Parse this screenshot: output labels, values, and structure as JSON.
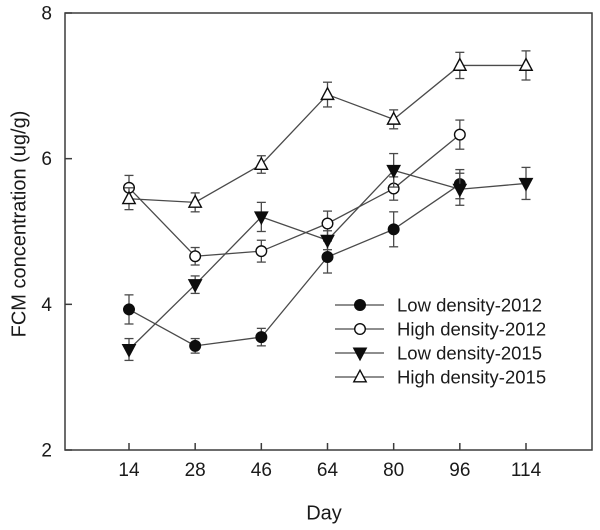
{
  "figure": {
    "background": "#ffffff",
    "y_axis_title": "FCM concentration (ug/g)",
    "x_axis_title": "Day"
  },
  "chart_data": {
    "type": "line",
    "title": "",
    "xlabel": "Day",
    "ylabel": "FCM concentration (ug/g)",
    "x_categories": [
      "14",
      "28",
      "46",
      "64",
      "80",
      "96",
      "114"
    ],
    "ylim": [
      2,
      8
    ],
    "y_ticks": [
      2,
      4,
      6,
      8
    ],
    "grid": false,
    "error_bars": true,
    "legend_position": "inside-lower-right",
    "series": [
      {
        "name": "Low density-2012",
        "marker": "circle",
        "fill": "filled",
        "values": [
          3.93,
          3.43,
          3.55,
          4.65,
          5.03,
          5.65,
          null
        ],
        "errors": [
          0.2,
          0.1,
          0.12,
          0.22,
          0.24,
          0.2,
          null
        ]
      },
      {
        "name": "High density-2012",
        "marker": "circle",
        "fill": "open",
        "values": [
          5.6,
          4.66,
          4.73,
          5.11,
          5.59,
          6.33,
          null
        ],
        "errors": [
          0.17,
          0.12,
          0.15,
          0.17,
          0.16,
          0.2,
          null
        ]
      },
      {
        "name": "Low density-2015",
        "marker": "triangle-down",
        "fill": "filled",
        "values": [
          3.38,
          4.27,
          5.2,
          4.88,
          5.84,
          5.58,
          5.66
        ],
        "errors": [
          0.15,
          0.12,
          0.2,
          0.13,
          0.23,
          0.22,
          0.22
        ]
      },
      {
        "name": "High density-2015",
        "marker": "triangle-up",
        "fill": "open",
        "values": [
          5.45,
          5.4,
          5.92,
          6.88,
          6.54,
          7.28,
          7.28
        ],
        "errors": [
          0.15,
          0.13,
          0.12,
          0.17,
          0.13,
          0.18,
          0.2
        ]
      }
    ],
    "colors": {
      "line": "#4a4a4a",
      "marker": "#0d0d0d",
      "axis": "#3c3c3c",
      "text": "#1a1a1a",
      "background": "#ffffff"
    }
  }
}
